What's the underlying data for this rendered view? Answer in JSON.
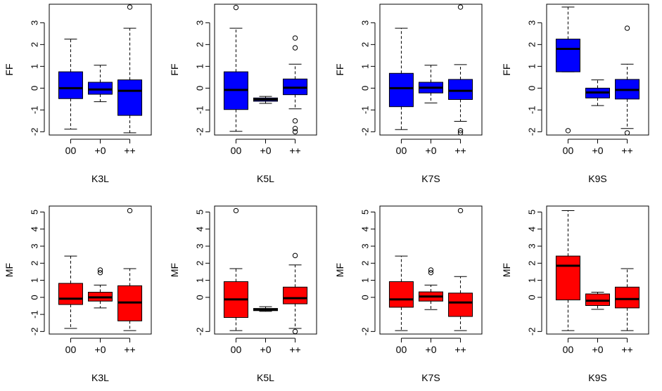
{
  "chart_data": [
    {
      "type": "box",
      "id": "ff-k3l",
      "fill": "#0000ff",
      "ylabel": "FF",
      "xlabel": "K3L",
      "categories": [
        "00",
        "+0",
        "++"
      ],
      "yticks": [
        -2,
        -1,
        0,
        1,
        2,
        3
      ],
      "ylim": [
        -2.15,
        3.85
      ],
      "boxes": [
        {
          "q1": -0.48,
          "median": 0.0,
          "q3": 0.75,
          "whisker_low": -1.88,
          "whisker_high": 2.25,
          "outliers": []
        },
        {
          "q1": -0.28,
          "median": -0.06,
          "q3": 0.27,
          "whisker_low": -0.62,
          "whisker_high": 1.05,
          "outliers": []
        },
        {
          "q1": -1.25,
          "median": -0.12,
          "q3": 0.38,
          "whisker_low": -2.05,
          "whisker_high": 2.75,
          "outliers": [
            3.72
          ]
        }
      ]
    },
    {
      "type": "box",
      "id": "ff-k5l",
      "fill": "#0000ff",
      "ylabel": "FF",
      "xlabel": "K5L",
      "categories": [
        "00",
        "+0",
        "++"
      ],
      "yticks": [
        -2,
        -1,
        0,
        1,
        2,
        3
      ],
      "ylim": [
        -2.15,
        3.85
      ],
      "boxes": [
        {
          "q1": -0.98,
          "median": -0.08,
          "q3": 0.75,
          "whisker_low": -1.98,
          "whisker_high": 2.75,
          "outliers": [
            3.7
          ]
        },
        {
          "q1": -0.6,
          "median": -0.52,
          "q3": -0.45,
          "whisker_low": -0.7,
          "whisker_high": -0.38,
          "outliers": []
        },
        {
          "q1": -0.3,
          "median": 0.02,
          "q3": 0.42,
          "whisker_low": -0.95,
          "whisker_high": 1.1,
          "outliers": [
            1.85,
            2.3,
            -1.5,
            -1.85,
            -2.0
          ]
        }
      ]
    },
    {
      "type": "box",
      "id": "ff-k7s",
      "fill": "#0000ff",
      "ylabel": "FF",
      "xlabel": "K7S",
      "categories": [
        "00",
        "+0",
        "++"
      ],
      "yticks": [
        -2,
        -1,
        0,
        1,
        2,
        3
      ],
      "ylim": [
        -2.15,
        3.85
      ],
      "boxes": [
        {
          "q1": -0.85,
          "median": 0.0,
          "q3": 0.68,
          "whisker_low": -1.9,
          "whisker_high": 2.75,
          "outliers": []
        },
        {
          "q1": -0.22,
          "median": 0.02,
          "q3": 0.27,
          "whisker_low": -0.68,
          "whisker_high": 1.05,
          "outliers": []
        },
        {
          "q1": -0.52,
          "median": -0.12,
          "q3": 0.4,
          "whisker_low": -1.52,
          "whisker_high": 1.08,
          "outliers": [
            3.72,
            -1.95,
            -2.05
          ]
        }
      ]
    },
    {
      "type": "box",
      "id": "ff-k9s",
      "fill": "#0000ff",
      "ylabel": "FF",
      "xlabel": "K9S",
      "categories": [
        "00",
        "+0",
        "++"
      ],
      "yticks": [
        -2,
        -1,
        0,
        1,
        2,
        3
      ],
      "ylim": [
        -2.15,
        3.85
      ],
      "boxes": [
        {
          "q1": 0.75,
          "median": 1.8,
          "q3": 2.25,
          "whisker_low": 0.75,
          "whisker_high": 3.72,
          "outliers": [
            -1.95
          ]
        },
        {
          "q1": -0.45,
          "median": -0.2,
          "q3": 0.0,
          "whisker_low": -0.8,
          "whisker_high": 0.38,
          "outliers": []
        },
        {
          "q1": -0.5,
          "median": -0.08,
          "q3": 0.4,
          "whisker_low": -1.85,
          "whisker_high": 1.1,
          "outliers": [
            2.75,
            -2.05
          ]
        }
      ]
    },
    {
      "type": "box",
      "id": "mf-k3l",
      "fill": "#ff0000",
      "ylabel": "MF",
      "xlabel": "K3L",
      "categories": [
        "00",
        "+0",
        "++"
      ],
      "yticks": [
        -2,
        -1,
        0,
        1,
        2,
        3,
        4,
        5
      ],
      "ylim": [
        -2.15,
        5.35
      ],
      "boxes": [
        {
          "q1": -0.42,
          "median": -0.08,
          "q3": 0.82,
          "whisker_low": -1.82,
          "whisker_high": 2.42,
          "outliers": []
        },
        {
          "q1": -0.22,
          "median": 0.0,
          "q3": 0.3,
          "whisker_low": -0.62,
          "whisker_high": 0.72,
          "outliers": [
            1.45,
            1.6
          ]
        },
        {
          "q1": -1.38,
          "median": -0.3,
          "q3": 0.68,
          "whisker_low": -1.95,
          "whisker_high": 1.68,
          "outliers": [
            5.08
          ]
        }
      ]
    },
    {
      "type": "box",
      "id": "mf-k5l",
      "fill": "#ff0000",
      "ylabel": "MF",
      "xlabel": "K5L",
      "categories": [
        "00",
        "+0",
        "++"
      ],
      "yticks": [
        -2,
        0,
        1,
        2,
        3,
        4,
        5
      ],
      "ylim": [
        -2.15,
        5.35
      ],
      "boxes": [
        {
          "q1": -1.18,
          "median": -0.12,
          "q3": 0.92,
          "whisker_low": -1.95,
          "whisker_high": 1.68,
          "outliers": [
            5.08
          ]
        },
        {
          "q1": -0.78,
          "median": -0.72,
          "q3": -0.65,
          "whisker_low": -0.82,
          "whisker_high": -0.55,
          "outliers": []
        },
        {
          "q1": -0.38,
          "median": -0.05,
          "q3": 0.6,
          "whisker_low": -1.82,
          "whisker_high": 1.9,
          "outliers": [
            2.45,
            -2.0
          ]
        }
      ]
    },
    {
      "type": "box",
      "id": "mf-k7s",
      "fill": "#ff0000",
      "ylabel": "MF",
      "xlabel": "K7S",
      "categories": [
        "00",
        "+0",
        "++"
      ],
      "yticks": [
        -2,
        0,
        1,
        2,
        3,
        4,
        5
      ],
      "ylim": [
        -2.15,
        5.35
      ],
      "boxes": [
        {
          "q1": -0.58,
          "median": -0.12,
          "q3": 0.92,
          "whisker_low": -1.95,
          "whisker_high": 2.42,
          "outliers": []
        },
        {
          "q1": -0.22,
          "median": 0.05,
          "q3": 0.32,
          "whisker_low": -0.72,
          "whisker_high": 0.72,
          "outliers": [
            1.45,
            1.6
          ]
        },
        {
          "q1": -1.12,
          "median": -0.3,
          "q3": 0.25,
          "whisker_low": -1.95,
          "whisker_high": 1.22,
          "outliers": [
            5.08
          ]
        }
      ]
    },
    {
      "type": "box",
      "id": "mf-k9s",
      "fill": "#ff0000",
      "ylabel": "MF",
      "xlabel": "K9S",
      "categories": [
        "00",
        "+0",
        "++"
      ],
      "yticks": [
        -2,
        0,
        1,
        2,
        3,
        4,
        5
      ],
      "ylim": [
        -2.15,
        5.35
      ],
      "boxes": [
        {
          "q1": -0.15,
          "median": 1.85,
          "q3": 2.42,
          "whisker_low": -1.95,
          "whisker_high": 5.08,
          "outliers": []
        },
        {
          "q1": -0.48,
          "median": -0.2,
          "q3": 0.2,
          "whisker_low": -0.7,
          "whisker_high": 0.3,
          "outliers": []
        },
        {
          "q1": -0.62,
          "median": -0.1,
          "q3": 0.6,
          "whisker_low": -1.95,
          "whisker_high": 1.68,
          "outliers": []
        }
      ]
    }
  ]
}
